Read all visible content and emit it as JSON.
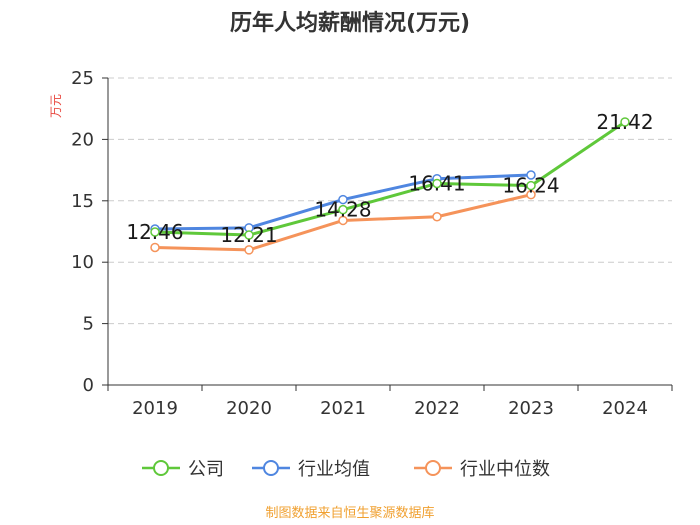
{
  "chart_data": {
    "type": "line",
    "title": "历年人均薪酬情况(万元)",
    "ylabel": "万元",
    "xlabel": "",
    "categories": [
      "2019",
      "2020",
      "2021",
      "2022",
      "2023",
      "2024"
    ],
    "ylim": [
      0,
      25
    ],
    "yticks": [
      0,
      5,
      10,
      15,
      20,
      25
    ],
    "grid": true,
    "legend_position": "bottom",
    "series": [
      {
        "name": "公司",
        "color": "#5fc83a",
        "values": [
          12.46,
          12.21,
          14.28,
          16.41,
          16.24,
          21.42
        ],
        "labels": [
          "12.46",
          "12.21",
          "14.28",
          "16.41",
          "16.24",
          "21.42"
        ]
      },
      {
        "name": "行业均值",
        "color": "#4f86e0",
        "values": [
          12.7,
          12.8,
          15.1,
          16.8,
          17.1,
          null
        ]
      },
      {
        "name": "行业中位数",
        "color": "#f5935a",
        "values": [
          11.2,
          11.0,
          13.4,
          13.7,
          15.5,
          null
        ]
      }
    ],
    "source": "制图数据来自恒生聚源数据库"
  }
}
